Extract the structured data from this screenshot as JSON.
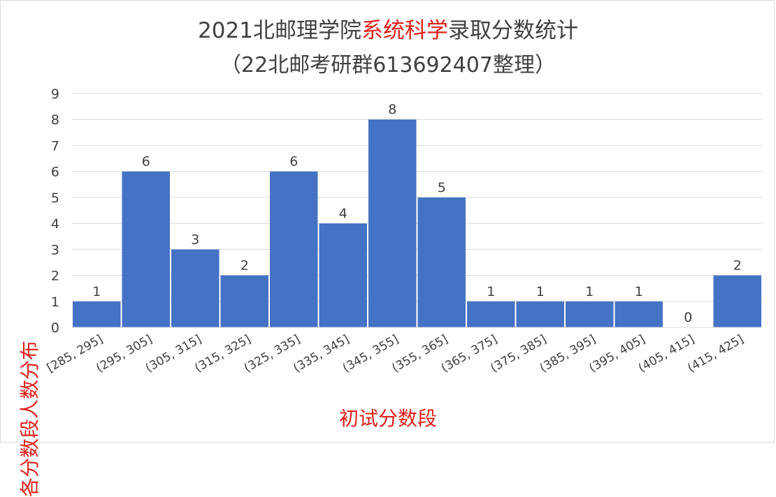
{
  "header": {
    "title_part1": "2021北邮理学院",
    "title_highlight": "系统科学",
    "title_part2": "录取分数统计",
    "subtitle": "（22北邮考研群613692407整理）"
  },
  "colors": {
    "bar": "#4472c4",
    "highlight": "#e0201b",
    "text": "#404040",
    "grid": "#d9d9d9"
  },
  "chart_data": {
    "type": "bar",
    "title": "2021北邮理学院系统科学录取分数统计",
    "subtitle": "（22北邮考研群613692407整理）",
    "xlabel": "初试分数段",
    "ylabel": "各分数段人数分布",
    "categories": [
      "[285, 295]",
      "(295, 305]",
      "(305, 315]",
      "(315, 325]",
      "(325, 335]",
      "(335, 345]",
      "(345, 355]",
      "(355, 365]",
      "(365, 375]",
      "(375, 385]",
      "(385, 395]",
      "(395, 405]",
      "(405, 415]",
      "(415, 425]"
    ],
    "values": [
      1,
      6,
      3,
      2,
      6,
      4,
      8,
      5,
      1,
      1,
      1,
      1,
      0,
      2
    ],
    "ylim": [
      0,
      9
    ],
    "yticks": [
      0,
      1,
      2,
      3,
      4,
      5,
      6,
      7,
      8,
      9
    ],
    "grid": true,
    "legend": "none"
  }
}
